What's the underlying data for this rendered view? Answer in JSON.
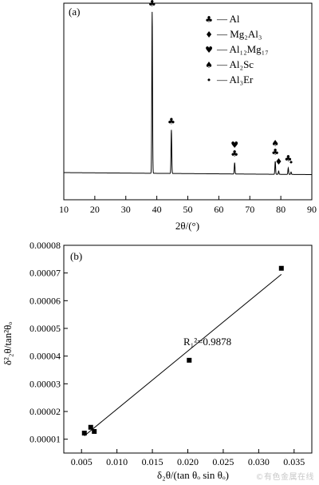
{
  "chart_data": [
    {
      "type": "line",
      "panel_label": "(a)",
      "xlabel": "2θ/(°)",
      "xlim": [
        10,
        90
      ],
      "xticks": [
        "10",
        "20",
        "30",
        "40",
        "50",
        "60",
        "70",
        "80",
        "90"
      ],
      "ylabel": "",
      "baseline_intensity": 1.0,
      "peaks": [
        {
          "x": 38.5,
          "height": 100,
          "markers": [
            "club"
          ]
        },
        {
          "x": 44.7,
          "height": 27,
          "markers": [
            "club"
          ]
        },
        {
          "x": 65.1,
          "height": 7,
          "markers": [
            "club",
            "heart"
          ]
        },
        {
          "x": 78.2,
          "height": 8,
          "markers": [
            "club",
            "spade"
          ]
        },
        {
          "x": 79.3,
          "height": 2,
          "markers": [
            "diamond"
          ]
        },
        {
          "x": 82.4,
          "height": 4,
          "markers": [
            "club"
          ]
        },
        {
          "x": 83.3,
          "height": 1.5,
          "markers": [
            "dot"
          ]
        }
      ],
      "legend": [
        {
          "symbol": "club",
          "sym_char": "♣",
          "label": "— Al"
        },
        {
          "symbol": "diamond",
          "sym_char": "♦",
          "label": "— Mg₂Al₃"
        },
        {
          "symbol": "heart",
          "sym_char": "♥",
          "label": "— Al₁₂Mg₁₇"
        },
        {
          "symbol": "spade",
          "sym_char": "♠",
          "label": "— Al₂Sc"
        },
        {
          "symbol": "dot",
          "sym_char": "•",
          "label": "— Al₃Er"
        }
      ],
      "legend_position": "top-right"
    },
    {
      "type": "scatter",
      "panel_label": "(b)",
      "xlabel": "δ₂θ/(tan θₒ sin θₒ)",
      "ylabel": "δ²₂θ/tan²θₒ",
      "xlim": [
        0.0025,
        0.0375
      ],
      "ylim": [
        5e-06,
        8e-05
      ],
      "xticks": [
        "0.005",
        "0.010",
        "0.015",
        "0.020",
        "0.025",
        "0.030",
        "0.035"
      ],
      "xtick_values": [
        0.005,
        0.01,
        0.015,
        0.02,
        0.025,
        0.03,
        0.035
      ],
      "yticks": [
        "0.00001",
        "0.00002",
        "0.00003",
        "0.00004",
        "0.00005",
        "0.00006",
        "0.00007",
        "0.00008"
      ],
      "ytick_values": [
        1e-05,
        2e-05,
        3e-05,
        4e-05,
        5e-05,
        6e-05,
        7e-05,
        8e-05
      ],
      "points": [
        {
          "x": 0.0054,
          "y": 1.22e-05
        },
        {
          "x": 0.0063,
          "y": 1.43e-05
        },
        {
          "x": 0.0068,
          "y": 1.28e-05
        },
        {
          "x": 0.0202,
          "y": 3.85e-05
        },
        {
          "x": 0.0332,
          "y": 7.17e-05
        }
      ],
      "fit_line": {
        "x0": 0.0054,
        "y0": 1.12e-05,
        "x1": 0.0332,
        "y1": 6.95e-05
      },
      "annotation": "R₁²=0.9878"
    }
  ],
  "watermark": "©有色金属在线"
}
